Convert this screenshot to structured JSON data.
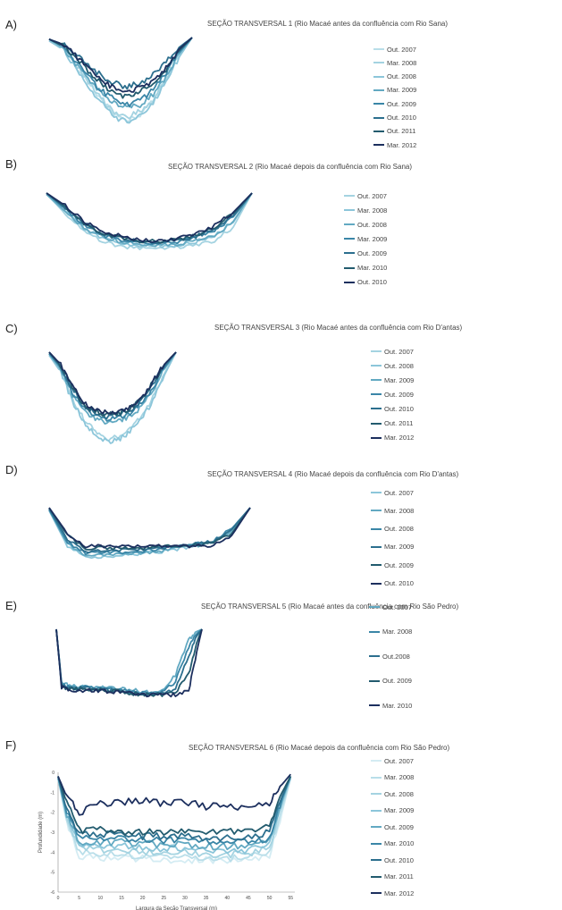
{
  "panels": [
    {
      "letter": "A)",
      "title": "SEÇÃO TRANSVERSAL 1 (Rio Macaé  antes da confluência com Rio Sana)"
    },
    {
      "letter": "B)",
      "title": "SEÇÃO TRANSVERSAL 2 (Rio Macaé  depois da confluência com Rio Sana)"
    },
    {
      "letter": "C)",
      "title": "SEÇÃO TRANSVERSAL 3 (Rio Macaé  antes da confluência com Rio D'antas)"
    },
    {
      "letter": "D)",
      "title": "SEÇÃO TRANSVERSAL 4 (Rio Macaé depois da confluência com Rio D'antas)"
    },
    {
      "letter": "E)",
      "title": "SEÇÃO TRANSVERSAL 5 (Rio Macaé antes da confluência com Rio São Pedro)"
    },
    {
      "letter": "F)",
      "title": "SEÇÃO TRANSVERSAL 6 (Rio Macaé  depois da confluência com Rio São Pedro)"
    }
  ],
  "colors": [
    "#d4ecf3",
    "#b9dee9",
    "#a4d3e1",
    "#8cc6da",
    "#62a9c2",
    "#3a86a7",
    "#2c6f8e",
    "#225b6e",
    "#1c2f5e"
  ],
  "chart_data": [
    {
      "type": "line",
      "title": "SEÇÃO TRANSVERSAL 1 (Rio Macaé  antes da confluência com Rio Sana)",
      "xlabel": "",
      "ylabel": "",
      "xlim": [
        0,
        55
      ],
      "ylim": [
        -6,
        0
      ],
      "x": [
        0,
        5,
        10,
        15,
        20,
        25,
        30,
        35,
        40,
        45,
        50,
        55
      ],
      "series": [
        {
          "name": "Out. 2007",
          "values": [
            -0.2,
            -0.6,
            -1.6,
            -2.8,
            -3.8,
            -4.6,
            -5.0,
            -4.7,
            -3.9,
            -2.6,
            -1.1,
            0
          ]
        },
        {
          "name": "Mar. 2008",
          "values": [
            -0.1,
            -0.5,
            -1.5,
            -2.7,
            -3.7,
            -4.5,
            -4.9,
            -4.5,
            -3.8,
            -2.5,
            -1.0,
            0
          ]
        },
        {
          "name": "Out. 2008",
          "values": [
            -0.2,
            -0.7,
            -1.8,
            -3.0,
            -4.0,
            -4.8,
            -5.2,
            -4.8,
            -4.0,
            -2.7,
            -1.2,
            0
          ]
        },
        {
          "name": "Mar. 2009",
          "values": [
            -0.1,
            -0.6,
            -1.6,
            -2.6,
            -3.4,
            -4.0,
            -4.3,
            -4.1,
            -3.5,
            -2.4,
            -1.0,
            0
          ]
        },
        {
          "name": "Out. 2009",
          "values": [
            -0.1,
            -0.5,
            -1.4,
            -2.4,
            -3.2,
            -3.8,
            -4.1,
            -3.8,
            -3.2,
            -2.2,
            -0.9,
            0
          ]
        },
        {
          "name": "Out. 2010",
          "values": [
            -0.1,
            -0.4,
            -1.0,
            -1.7,
            -2.3,
            -2.8,
            -3.0,
            -2.8,
            -2.3,
            -1.5,
            -0.6,
            0
          ]
        },
        {
          "name": "Out. 2011",
          "values": [
            -0.1,
            -0.5,
            -1.2,
            -2.0,
            -2.8,
            -3.4,
            -3.6,
            -3.3,
            -2.8,
            -2.0,
            -0.8,
            0
          ]
        },
        {
          "name": "Mar. 2012",
          "values": [
            -0.1,
            -0.4,
            -1.1,
            -1.9,
            -2.6,
            -3.1,
            -3.3,
            -3.1,
            -2.6,
            -1.8,
            -0.7,
            0
          ]
        }
      ]
    },
    {
      "type": "line",
      "title": "SEÇÃO TRANSVERSAL 2 (Rio Macaé  depois da confluência com Rio Sana)",
      "xlabel": "",
      "ylabel": "",
      "xlim": [
        0,
        55
      ],
      "ylim": [
        -6,
        0
      ],
      "x": [
        0,
        5,
        10,
        15,
        20,
        25,
        30,
        35,
        40,
        45,
        50,
        55
      ],
      "series": [
        {
          "name": "Out. 2007",
          "values": [
            -0.1,
            -1.8,
            -3.3,
            -4.3,
            -4.7,
            -4.9,
            -4.9,
            -4.8,
            -4.6,
            -4.2,
            -3.0,
            0
          ]
        },
        {
          "name": "Mar. 2008",
          "values": [
            -0.1,
            -1.7,
            -3.1,
            -4.0,
            -4.4,
            -4.6,
            -4.7,
            -4.6,
            -4.3,
            -3.8,
            -2.6,
            0
          ]
        },
        {
          "name": "Out. 2008",
          "values": [
            -0.1,
            -1.6,
            -3.0,
            -3.9,
            -4.3,
            -4.5,
            -4.6,
            -4.5,
            -4.2,
            -3.7,
            -2.5,
            0
          ]
        },
        {
          "name": "Mar. 2009",
          "values": [
            0,
            -1.4,
            -2.8,
            -3.7,
            -4.1,
            -4.4,
            -4.5,
            -4.3,
            -3.9,
            -3.3,
            -2.1,
            0
          ]
        },
        {
          "name": "Out. 2009",
          "values": [
            0,
            -1.3,
            -2.7,
            -3.6,
            -4.0,
            -4.3,
            -4.4,
            -4.2,
            -3.8,
            -3.2,
            -2.0,
            0
          ]
        },
        {
          "name": "Mar. 2010",
          "values": [
            0,
            -1.2,
            -2.6,
            -3.5,
            -3.9,
            -4.2,
            -4.3,
            -4.1,
            -3.7,
            -3.0,
            -1.8,
            0
          ]
        },
        {
          "name": "Out. 2010",
          "values": [
            0,
            -1.1,
            -2.5,
            -3.4,
            -3.8,
            -4.1,
            -4.2,
            -4.0,
            -3.6,
            -2.9,
            -1.7,
            0
          ]
        }
      ]
    },
    {
      "type": "line",
      "title": "SEÇÃO TRANSVERSAL 3 (Rio Macaé  antes da confluência com Rio D'antas)",
      "xlabel": "",
      "ylabel": "",
      "xlim": [
        0,
        55
      ],
      "ylim": [
        -6,
        0
      ],
      "x": [
        0,
        5,
        10,
        15,
        20,
        25,
        30,
        35,
        40,
        45,
        50,
        55
      ],
      "series": [
        {
          "name": "Out. 2007",
          "values": [
            -0.2,
            -1.2,
            -3.0,
            -4.4,
            -5.2,
            -5.7,
            -5.6,
            -5.0,
            -4.2,
            -3.0,
            -1.4,
            0
          ]
        },
        {
          "name": "Out. 2008",
          "values": [
            -0.2,
            -1.3,
            -3.2,
            -4.6,
            -5.4,
            -5.9,
            -5.8,
            -5.2,
            -4.4,
            -3.2,
            -1.5,
            0
          ]
        },
        {
          "name": "Mar. 2009",
          "values": [
            -0.1,
            -1.1,
            -2.8,
            -3.9,
            -4.4,
            -4.6,
            -4.5,
            -4.2,
            -3.6,
            -2.5,
            -1.1,
            0
          ]
        },
        {
          "name": "Out. 2009",
          "values": [
            -0.1,
            -1.0,
            -2.6,
            -3.7,
            -4.2,
            -4.4,
            -4.3,
            -4.0,
            -3.4,
            -2.3,
            -1.0,
            0
          ]
        },
        {
          "name": "Out. 2010",
          "values": [
            0,
            -0.9,
            -2.4,
            -3.5,
            -4.0,
            -4.2,
            -4.1,
            -3.8,
            -3.2,
            -2.1,
            -0.9,
            0
          ]
        },
        {
          "name": "Out. 2011",
          "values": [
            0,
            -0.9,
            -2.3,
            -3.4,
            -3.9,
            -4.1,
            -4.0,
            -3.7,
            -3.1,
            -2.0,
            -0.8,
            0
          ]
        },
        {
          "name": "Mar. 2012",
          "values": [
            0,
            -0.8,
            -2.2,
            -3.3,
            -3.8,
            -4.0,
            -3.9,
            -3.6,
            -3.0,
            -1.9,
            -0.8,
            0
          ]
        }
      ]
    },
    {
      "type": "line",
      "title": "SEÇÃO TRANSVERSAL 4 (Rio Macaé depois da confluência com Rio D'antas)",
      "xlabel": "",
      "ylabel": "",
      "xlim": [
        0,
        55
      ],
      "ylim": [
        -6,
        0
      ],
      "x": [
        0,
        5,
        10,
        15,
        20,
        25,
        30,
        35,
        40,
        45,
        50,
        55
      ],
      "series": [
        {
          "name": "Out. 2007",
          "values": [
            -0.3,
            -3.9,
            -5.0,
            -5.0,
            -4.9,
            -4.7,
            -4.5,
            -4.2,
            -3.9,
            -3.5,
            -2.5,
            0
          ]
        },
        {
          "name": "Mar. 2008",
          "values": [
            -0.2,
            -3.7,
            -4.8,
            -4.8,
            -4.7,
            -4.6,
            -4.4,
            -4.1,
            -3.8,
            -3.4,
            -2.3,
            0
          ]
        },
        {
          "name": "Out. 2008",
          "values": [
            -0.2,
            -3.5,
            -4.6,
            -4.6,
            -4.5,
            -4.4,
            -4.2,
            -4.0,
            -3.7,
            -3.3,
            -2.1,
            0
          ]
        },
        {
          "name": "Mar. 2009",
          "values": [
            -0.1,
            -3.2,
            -4.4,
            -4.4,
            -4.3,
            -4.2,
            -4.1,
            -3.9,
            -3.7,
            -3.4,
            -2.2,
            0
          ]
        },
        {
          "name": "Out. 2009",
          "values": [
            0,
            -2.8,
            -4.1,
            -4.1,
            -4.1,
            -4.1,
            -4.0,
            -3.9,
            -3.8,
            -3.6,
            -2.6,
            0
          ]
        },
        {
          "name": "Out. 2010",
          "values": [
            0,
            -2.6,
            -3.9,
            -3.9,
            -3.9,
            -3.9,
            -3.9,
            -3.9,
            -3.9,
            -3.8,
            -2.8,
            0
          ]
        }
      ]
    },
    {
      "type": "line",
      "title": "SEÇÃO TRANSVERSAL 5 (Rio Macaé antes da confluência com Rio São Pedro)",
      "xlabel": "",
      "ylabel": "",
      "xlim": [
        0,
        55
      ],
      "ylim": [
        -6,
        0
      ],
      "x": [
        0,
        2,
        5,
        10,
        15,
        20,
        25,
        30,
        35,
        40,
        45,
        50,
        53,
        55
      ],
      "series": [
        {
          "name": "Out. 2007",
          "values": [
            0,
            -4.7,
            -5.0,
            -5.0,
            -5.1,
            -5.2,
            -5.3,
            -5.4,
            -5.6,
            -5.3,
            -4.0,
            -1.0,
            -0.2,
            0
          ]
        },
        {
          "name": "Mar. 2008",
          "values": [
            0,
            -4.8,
            -5.1,
            -5.1,
            -5.2,
            -5.3,
            -5.4,
            -5.6,
            -5.7,
            -5.5,
            -4.6,
            -1.5,
            -0.4,
            0
          ]
        },
        {
          "name": "Out.2008",
          "values": [
            0,
            -4.9,
            -5.2,
            -5.2,
            -5.3,
            -5.4,
            -5.5,
            -5.6,
            -5.8,
            -5.7,
            -5.2,
            -2.5,
            -0.6,
            0
          ]
        },
        {
          "name": "Out. 2009",
          "values": [
            0,
            -5.0,
            -5.3,
            -5.3,
            -5.3,
            -5.4,
            -5.5,
            -5.7,
            -5.8,
            -5.8,
            -5.6,
            -4.0,
            -1.2,
            0
          ]
        },
        {
          "name": "Mar. 2010",
          "values": [
            0,
            -5.1,
            -5.4,
            -5.4,
            -5.4,
            -5.5,
            -5.6,
            -5.7,
            -5.8,
            -5.8,
            -5.8,
            -5.5,
            -2.0,
            0
          ]
        }
      ]
    },
    {
      "type": "line",
      "title": "SEÇÃO TRANSVERSAL 6 (Rio Macaé  depois da confluência com Rio São Pedro)",
      "xlabel": "Largura da Seção Transversal (m)",
      "ylabel": "Profundidade (m)",
      "xlim": [
        0,
        56
      ],
      "ylim": [
        -6,
        0
      ],
      "xticks": [
        0,
        5,
        10,
        15,
        20,
        25,
        30,
        35,
        40,
        45,
        50,
        55
      ],
      "yticks": [
        0,
        -1,
        -2,
        -3,
        -4,
        -5,
        -6
      ],
      "x": [
        0,
        2,
        5,
        10,
        15,
        20,
        25,
        30,
        35,
        40,
        45,
        50,
        53,
        55
      ],
      "series": [
        {
          "name": "Out. 2007",
          "values": [
            -0.3,
            -2.5,
            -4.2,
            -4.3,
            -4.3,
            -4.3,
            -4.4,
            -4.4,
            -4.4,
            -4.4,
            -4.4,
            -4.2,
            -2.0,
            -0.3
          ]
        },
        {
          "name": "Mar. 2008",
          "values": [
            -0.3,
            -2.4,
            -4.0,
            -4.1,
            -4.1,
            -4.2,
            -4.2,
            -4.2,
            -4.3,
            -4.3,
            -4.3,
            -4.0,
            -1.8,
            -0.3
          ]
        },
        {
          "name": "Out. 2008",
          "values": [
            -0.3,
            -2.3,
            -3.8,
            -3.9,
            -3.9,
            -4.0,
            -4.0,
            -4.0,
            -4.1,
            -4.1,
            -4.1,
            -3.8,
            -1.6,
            -0.3
          ]
        },
        {
          "name": "Mar. 2009",
          "values": [
            -0.3,
            -2.2,
            -3.6,
            -3.7,
            -3.7,
            -3.8,
            -3.8,
            -3.8,
            -3.9,
            -3.9,
            -3.9,
            -3.6,
            -1.5,
            -0.2
          ]
        },
        {
          "name": "Out. 2009",
          "values": [
            -0.3,
            -2.1,
            -3.5,
            -3.5,
            -3.5,
            -3.6,
            -3.6,
            -3.6,
            -3.7,
            -3.7,
            -3.7,
            -3.4,
            -1.4,
            -0.2
          ]
        },
        {
          "name": "Mar. 2010",
          "values": [
            -0.2,
            -2.0,
            -3.3,
            -3.3,
            -3.3,
            -3.4,
            -3.4,
            -3.4,
            -3.5,
            -3.5,
            -3.5,
            -3.3,
            -1.3,
            -0.2
          ]
        },
        {
          "name": "Out. 2010",
          "values": [
            -0.2,
            -1.9,
            -3.1,
            -3.1,
            -3.1,
            -3.2,
            -3.2,
            -3.2,
            -3.3,
            -3.3,
            -3.2,
            -3.0,
            -1.2,
            -0.2
          ]
        },
        {
          "name": "Mar. 2011",
          "values": [
            -0.2,
            -1.5,
            -2.9,
            -2.9,
            -3.0,
            -3.0,
            -3.0,
            -3.0,
            -3.0,
            -3.0,
            -2.9,
            -2.7,
            -1.0,
            -0.2
          ]
        },
        {
          "name": "Mar. 2012",
          "values": [
            -0.2,
            -1.2,
            -2.0,
            -1.6,
            -1.5,
            -1.4,
            -1.6,
            -1.5,
            -1.7,
            -1.7,
            -1.8,
            -1.5,
            -0.6,
            -0.1
          ]
        }
      ]
    }
  ]
}
